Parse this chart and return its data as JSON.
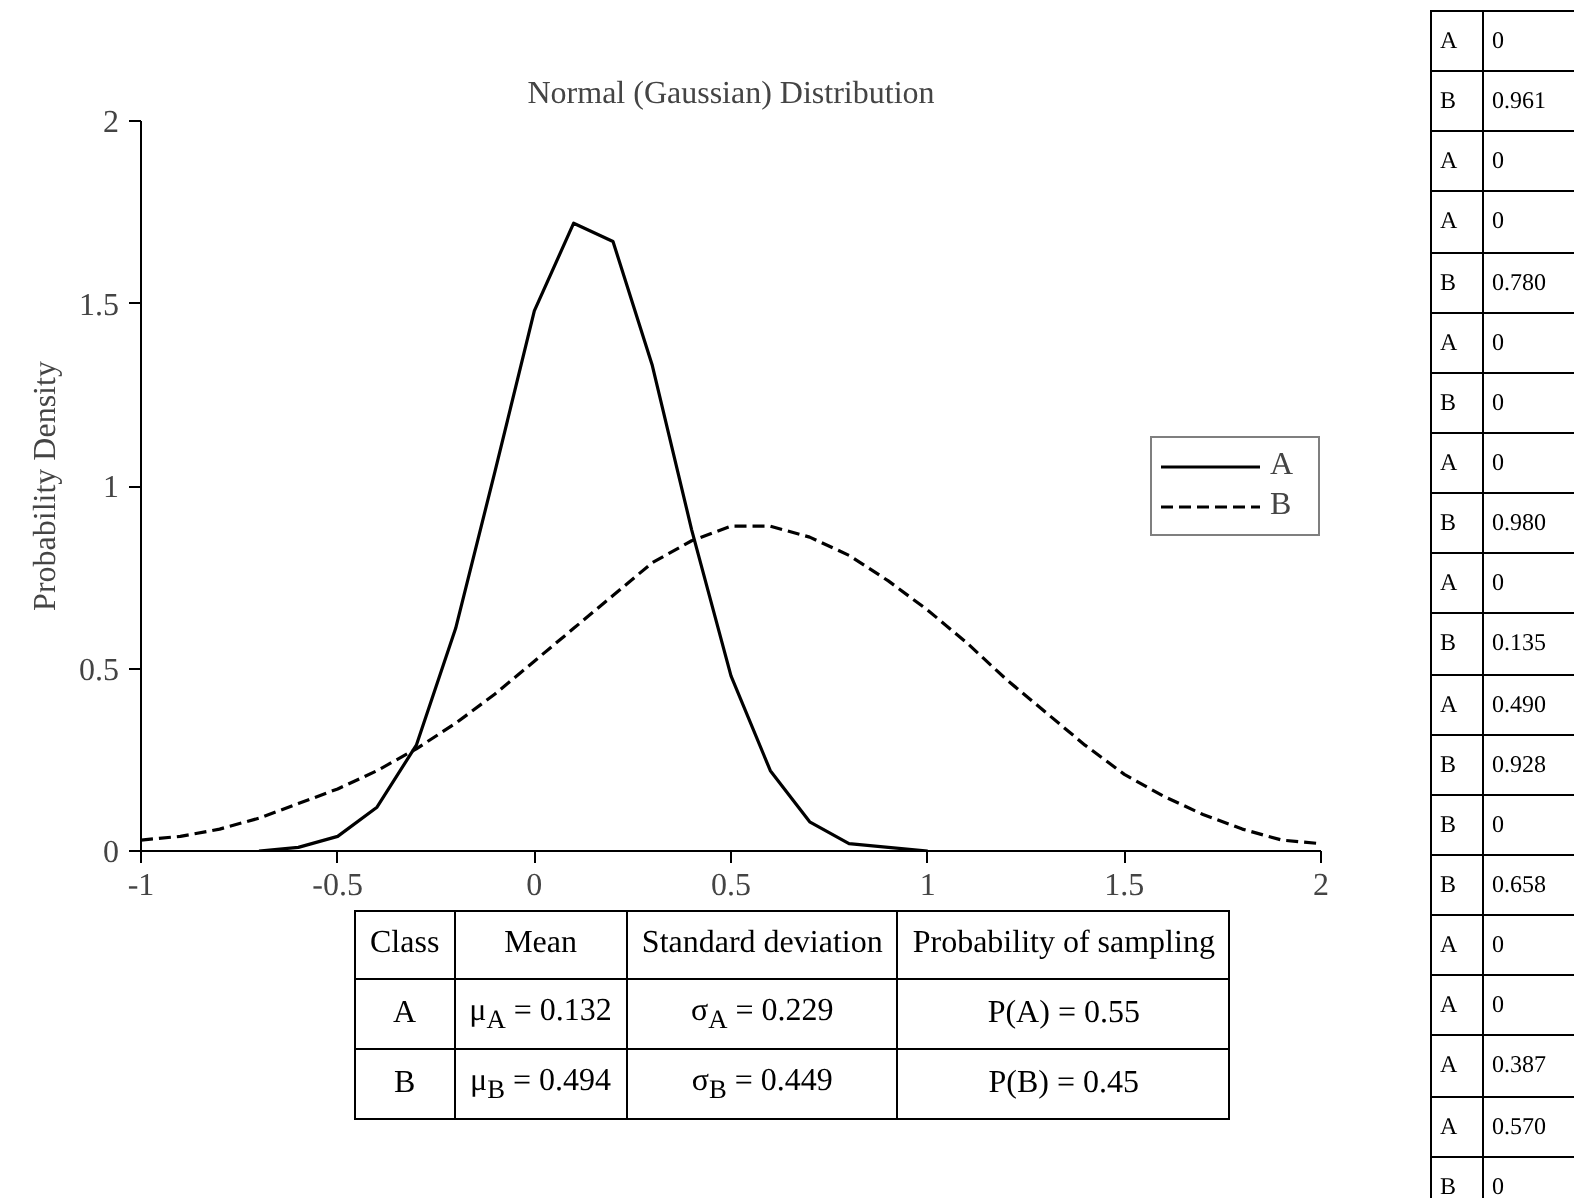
{
  "chart_data": [
    {
      "type": "line",
      "title": "Normal (Gaussian) Distribution",
      "ylabel": "Probability Density",
      "xlim": [
        -1,
        2
      ],
      "xticks": [
        -1,
        -0.5,
        0,
        0.5,
        1,
        1.5,
        2
      ],
      "ylim": [
        0,
        2
      ],
      "yticks": [
        0,
        0.5,
        1,
        1.5,
        2
      ],
      "grid": false,
      "legend": "right",
      "marker": "none",
      "series": [
        {
          "name": "A",
          "color": "#000000",
          "line_style": "solid",
          "x": [
            -0.7,
            -0.6,
            -0.5,
            -0.4,
            -0.3,
            -0.2,
            -0.1,
            0,
            0.1,
            0.2,
            0.3,
            0.4,
            0.5,
            0.6,
            0.7,
            0.8,
            0.9,
            1.0
          ],
          "values": [
            0.0,
            0.01,
            0.04,
            0.12,
            0.29,
            0.61,
            1.04,
            1.48,
            1.72,
            1.67,
            1.33,
            0.88,
            0.48,
            0.22,
            0.08,
            0.02,
            0.01,
            0.0
          ]
        },
        {
          "name": "B",
          "color": "#000000",
          "line_style": "dashed",
          "x": [
            -1.0,
            -0.9,
            -0.8,
            -0.7,
            -0.6,
            -0.5,
            -0.4,
            -0.3,
            -0.2,
            -0.1,
            0,
            0.1,
            0.2,
            0.3,
            0.4,
            0.5,
            0.6,
            0.7,
            0.8,
            0.9,
            1.0,
            1.1,
            1.2,
            1.3,
            1.4,
            1.5,
            1.6,
            1.7,
            1.8,
            1.9,
            2.0
          ],
          "values": [
            0.03,
            0.04,
            0.06,
            0.09,
            0.13,
            0.17,
            0.22,
            0.28,
            0.35,
            0.43,
            0.52,
            0.61,
            0.7,
            0.79,
            0.85,
            0.89,
            0.89,
            0.86,
            0.81,
            0.74,
            0.66,
            0.57,
            0.47,
            0.38,
            0.29,
            0.21,
            0.15,
            0.1,
            0.06,
            0.03,
            0.02
          ]
        }
      ]
    },
    {
      "type": "other",
      "annotations": [
        "Class",
        "Mean",
        "Standard deviation",
        "Probability of sampling",
        "A",
        "μ$_{A}$ = 0.132",
        "σ$_{A}$ = 0.229",
        "P(A) = 0.55",
        "B",
        "μ$_{B}$ = 0.494",
        "σ$_{B}$ = 0.449",
        "P(B) = 0.45"
      ]
    },
    {
      "type": "other",
      "annotations": [
        "A",
        "0",
        "B",
        "0.961",
        "A",
        "0",
        "A",
        "0",
        "B",
        "0.780",
        "A",
        "0",
        "B",
        "0",
        "A",
        "0",
        "B",
        "0.980",
        "A",
        "0",
        "B",
        "0.135",
        "A",
        "0.490",
        "B",
        "0.928",
        "B",
        "0",
        "B",
        "0.658",
        "A",
        "0",
        "A",
        "0",
        "A",
        "0.387",
        "A",
        "0.570",
        "B",
        "0"
      ]
    }
  ]
}
